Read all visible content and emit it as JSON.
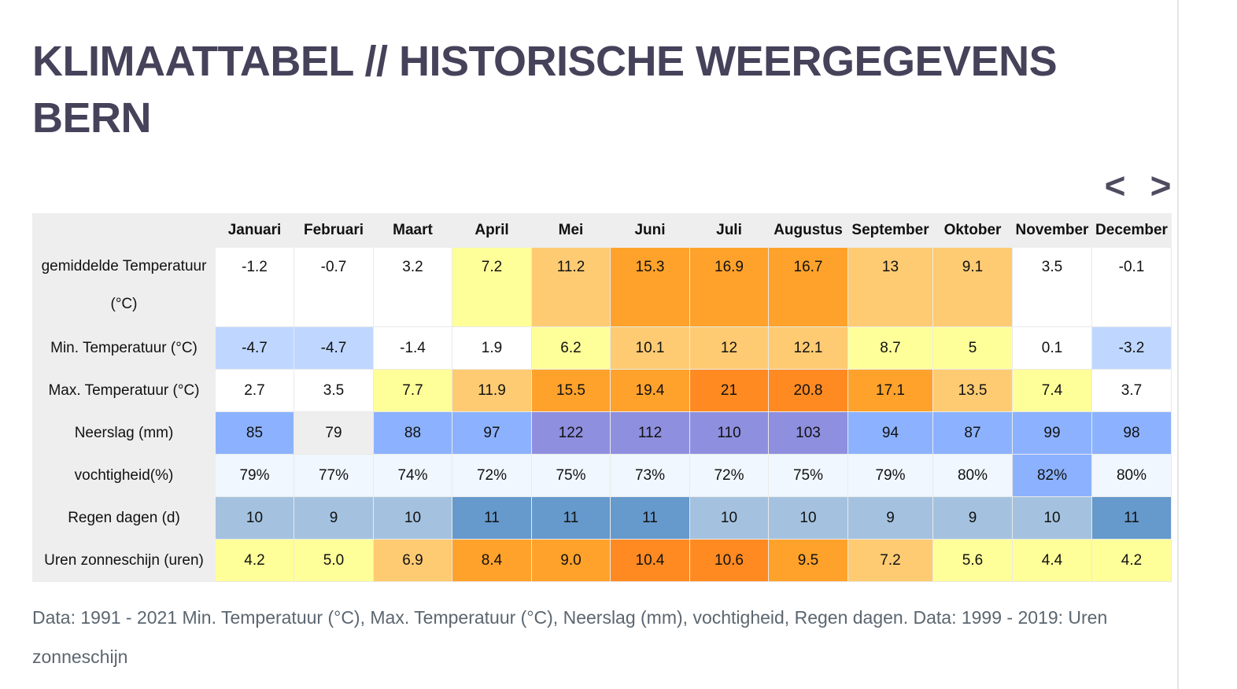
{
  "title": "KLIMAATTABEL // HISTORISCHE WEERGEGEVENS BERN",
  "nav": {
    "prev_label": "<",
    "next_label": ">"
  },
  "months": [
    "Januari",
    "Februari",
    "Maart",
    "April",
    "Mei",
    "Juni",
    "Juli",
    "Augustus",
    "September",
    "Oktober",
    "November",
    "December"
  ],
  "rows": [
    {
      "label": "gemiddelde Temperatuur (°C)",
      "values": [
        "-1.2",
        "-0.7",
        "3.2",
        "7.2",
        "11.2",
        "15.3",
        "16.9",
        "16.7",
        "13",
        "9.1",
        "3.5",
        "-0.1"
      ],
      "colors": [
        "#ffffff",
        "#ffffff",
        "#ffffff",
        "#ffff99",
        "#fecb72",
        "#ffa22b",
        "#ffa22b",
        "#ffa22b",
        "#fecb72",
        "#fecb72",
        "#ffffff",
        "#ffffff"
      ]
    },
    {
      "label": "Min. Temperatuur (°C)",
      "values": [
        "-4.7",
        "-4.7",
        "-1.4",
        "1.9",
        "6.2",
        "10.1",
        "12",
        "12.1",
        "8.7",
        "5",
        "0.1",
        "-3.2"
      ],
      "colors": [
        "#bfd7ff",
        "#bfd7ff",
        "#ffffff",
        "#ffffff",
        "#ffff99",
        "#fecb72",
        "#fecb72",
        "#fecb72",
        "#ffff99",
        "#ffff99",
        "#ffffff",
        "#bfd7ff"
      ]
    },
    {
      "label": "Max. Temperatuur (°C)",
      "values": [
        "2.7",
        "3.5",
        "7.7",
        "11.9",
        "15.5",
        "19.4",
        "21",
        "20.8",
        "17.1",
        "13.5",
        "7.4",
        "3.7"
      ],
      "colors": [
        "#ffffff",
        "#ffffff",
        "#ffff99",
        "#fecb72",
        "#ffa22b",
        "#ffa22b",
        "#ff8a22",
        "#ff8a22",
        "#ffa22b",
        "#fecb72",
        "#ffff99",
        "#ffffff"
      ]
    },
    {
      "label": "Neerslag (mm)",
      "values": [
        "85",
        "79",
        "88",
        "97",
        "122",
        "112",
        "110",
        "103",
        "94",
        "87",
        "99",
        "98"
      ],
      "colors": [
        "#8cb2ff",
        "#eeeeee",
        "#8cb2ff",
        "#8cb2ff",
        "#8f8fdf",
        "#8f8fdf",
        "#8f8fdf",
        "#8f8fdf",
        "#8cb2ff",
        "#8cb2ff",
        "#8cb2ff",
        "#8cb2ff"
      ]
    },
    {
      "label": "vochtigheid(%)",
      "values": [
        "79%",
        "77%",
        "74%",
        "72%",
        "75%",
        "73%",
        "72%",
        "75%",
        "79%",
        "80%",
        "82%",
        "80%"
      ],
      "colors": [
        "#f0f7ff",
        "#f0f7ff",
        "#f0f7ff",
        "#f0f7ff",
        "#f0f7ff",
        "#f0f7ff",
        "#f0f7ff",
        "#f0f7ff",
        "#f0f7ff",
        "#f0f7ff",
        "#8cb2ff",
        "#f0f7ff"
      ]
    },
    {
      "label": "Regen dagen (d)",
      "values": [
        "10",
        "9",
        "10",
        "11",
        "11",
        "11",
        "10",
        "10",
        "9",
        "9",
        "10",
        "11"
      ],
      "colors": [
        "#a4c2df",
        "#a4c2df",
        "#a4c2df",
        "#6699cc",
        "#6699cc",
        "#6699cc",
        "#a4c2df",
        "#a4c2df",
        "#a4c2df",
        "#a4c2df",
        "#a4c2df",
        "#6699cc"
      ]
    },
    {
      "label": "Uren zonneschijn (uren)",
      "values": [
        "4.2",
        "5.0",
        "6.9",
        "8.4",
        "9.0",
        "10.4",
        "10.6",
        "9.5",
        "7.2",
        "5.6",
        "4.4",
        "4.2"
      ],
      "colors": [
        "#ffff99",
        "#ffff99",
        "#fecb72",
        "#ffa22b",
        "#ffa22b",
        "#ff8a22",
        "#ff8a22",
        "#ffa22b",
        "#fecb72",
        "#ffff99",
        "#ffff99",
        "#ffff99"
      ]
    }
  ],
  "footnote": "Data: 1991 - 2021 Min. Temperatuur (°C), Max. Temperatuur (°C), Neerslag (mm), vochtigheid, Regen dagen. Data: 1999 - 2019: Uren zonneschijn"
}
